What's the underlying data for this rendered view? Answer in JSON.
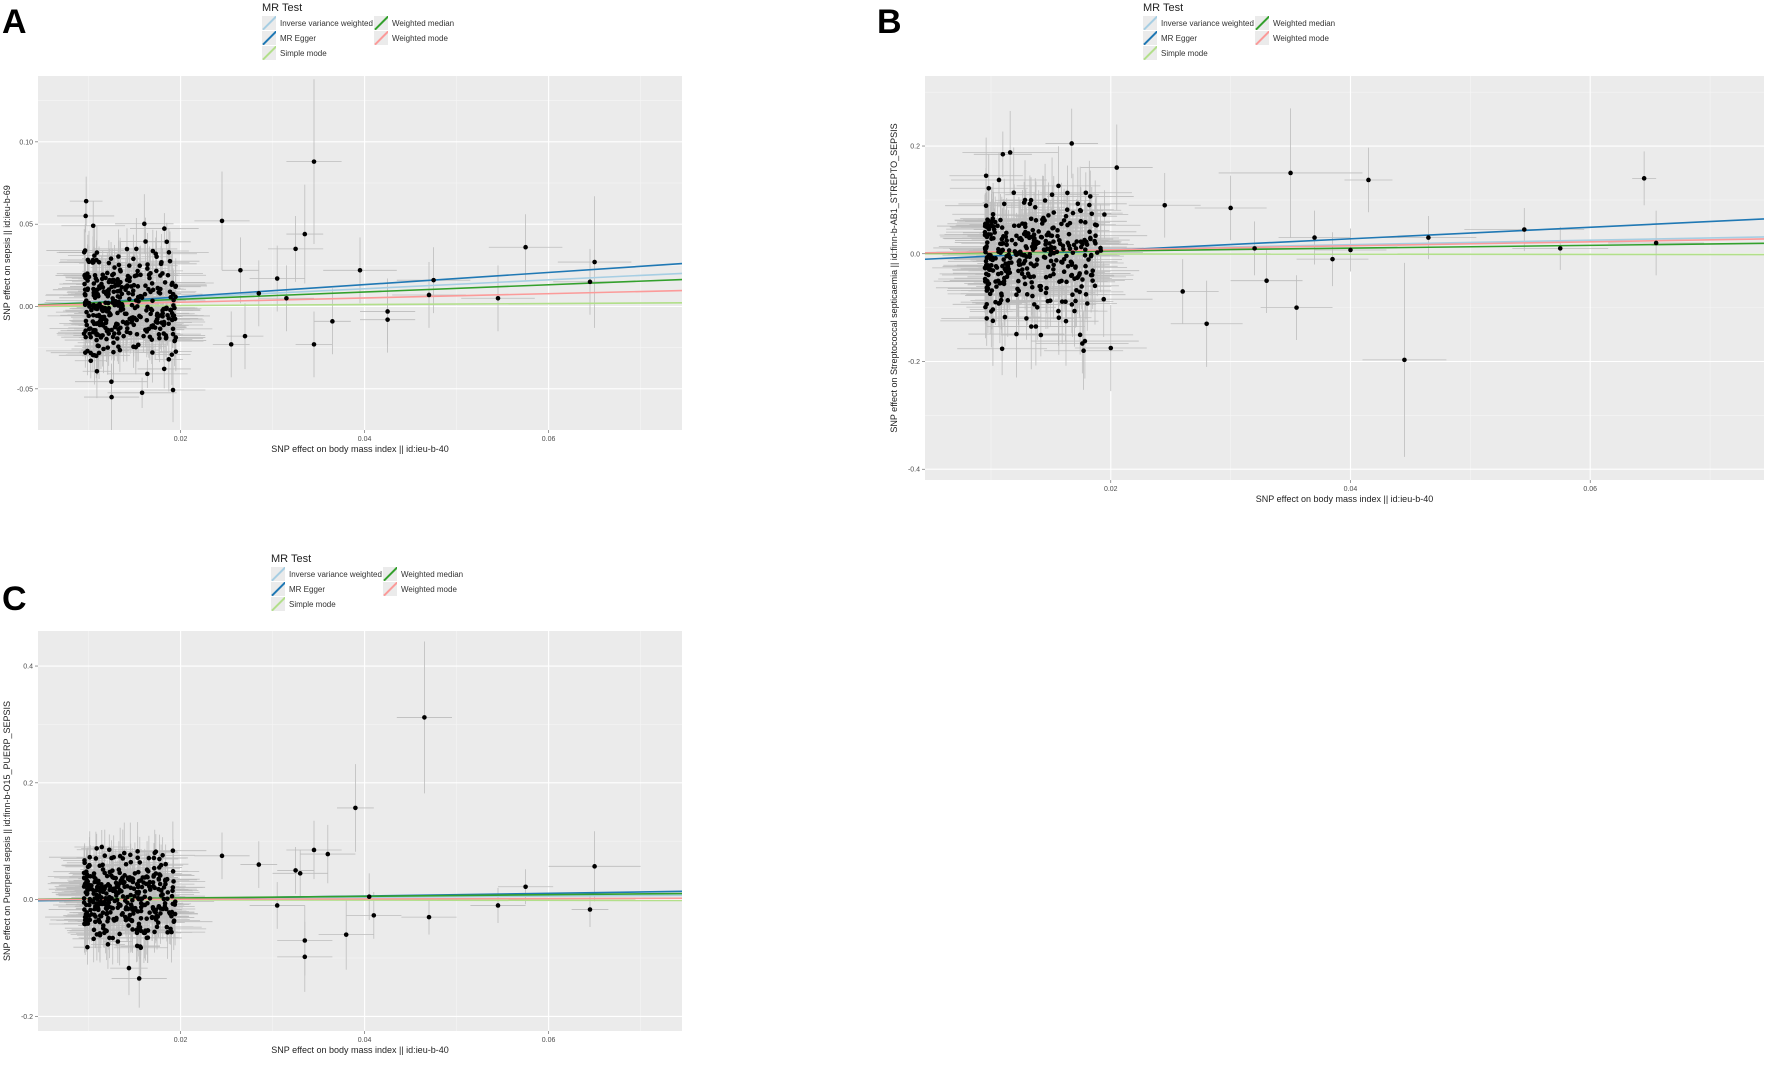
{
  "figure": {
    "legend_title": "MR Test",
    "methods": [
      {
        "name": "Inverse variance weighted",
        "color": "#a6cee3"
      },
      {
        "name": "MR Egger",
        "color": "#1f78b4"
      },
      {
        "name": "Simple mode",
        "color": "#b2df8a"
      },
      {
        "name": "Weighted median",
        "color": "#33a02c"
      },
      {
        "name": "Weighted mode",
        "color": "#fb9a99"
      }
    ]
  },
  "chart_data": [
    {
      "panel": "A",
      "type": "scatter",
      "xlabel": "SNP effect on body mass index || id:ieu-b-40",
      "ylabel": "SNP effect on sepsis || id:ieu-b-69",
      "xlim": [
        0.0045,
        0.0745
      ],
      "ylim": [
        -0.075,
        0.14
      ],
      "xticks": [
        0.02,
        0.04,
        0.06
      ],
      "xtick_labels": [
        "0.02",
        "0.04",
        "0.06"
      ],
      "yticks": [
        -0.05,
        0.0,
        0.05,
        0.1
      ],
      "ytick_labels": [
        "-0.05",
        "0.00",
        "0.05",
        "0.10"
      ],
      "cluster": {
        "seed": 11,
        "n": 380,
        "x_range": [
          0.0095,
          0.0195
        ],
        "y_sd": 0.018,
        "x_err": 0.003,
        "y_err": 0.014
      },
      "points": [
        {
          "x": 0.0345,
          "y": 0.088,
          "xe": 0.003,
          "ye": 0.05
        },
        {
          "x": 0.0335,
          "y": 0.044,
          "xe": 0.002,
          "ye": 0.03
        },
        {
          "x": 0.0325,
          "y": 0.035,
          "xe": 0.003,
          "ye": 0.02
        },
        {
          "x": 0.0395,
          "y": 0.022,
          "xe": 0.004,
          "ye": 0.02
        },
        {
          "x": 0.0265,
          "y": 0.022,
          "xe": 0.002,
          "ye": 0.02
        },
        {
          "x": 0.0245,
          "y": 0.052,
          "xe": 0.003,
          "ye": 0.03
        },
        {
          "x": 0.0305,
          "y": 0.017,
          "xe": 0.003,
          "ye": 0.02
        },
        {
          "x": 0.0285,
          "y": 0.008,
          "xe": 0.002,
          "ye": 0.02
        },
        {
          "x": 0.0315,
          "y": 0.005,
          "xe": 0.003,
          "ye": 0.02
        },
        {
          "x": 0.0345,
          "y": -0.023,
          "xe": 0.002,
          "ye": 0.02
        },
        {
          "x": 0.0365,
          "y": -0.009,
          "xe": 0.002,
          "ye": 0.02
        },
        {
          "x": 0.0425,
          "y": -0.003,
          "xe": 0.003,
          "ye": 0.02
        },
        {
          "x": 0.0425,
          "y": -0.008,
          "xe": 0.003,
          "ye": 0.02
        },
        {
          "x": 0.0475,
          "y": 0.016,
          "xe": 0.004,
          "ye": 0.02
        },
        {
          "x": 0.047,
          "y": 0.007,
          "xe": 0.004,
          "ye": 0.02
        },
        {
          "x": 0.0545,
          "y": 0.005,
          "xe": 0.004,
          "ye": 0.02
        },
        {
          "x": 0.0575,
          "y": 0.036,
          "xe": 0.004,
          "ye": 0.02
        },
        {
          "x": 0.0645,
          "y": 0.015,
          "xe": 0.004,
          "ye": 0.02
        },
        {
          "x": 0.065,
          "y": 0.027,
          "xe": 0.004,
          "ye": 0.04
        },
        {
          "x": 0.027,
          "y": -0.018,
          "xe": 0.002,
          "ye": 0.02
        },
        {
          "x": 0.0255,
          "y": -0.023,
          "xe": 0.002,
          "ye": 0.02
        },
        {
          "x": 0.0125,
          "y": -0.055,
          "xe": 0.003,
          "ye": 0.02
        }
      ],
      "lines": [
        {
          "method": "Inverse variance weighted",
          "intercept": 0,
          "slope": 0.27
        },
        {
          "method": "MR Egger",
          "intercept": -0.0015,
          "slope": 0.37
        },
        {
          "method": "Simple mode",
          "intercept": 0,
          "slope": 0.03
        },
        {
          "method": "Weighted median",
          "intercept": 0,
          "slope": 0.22
        },
        {
          "method": "Weighted mode",
          "intercept": 0,
          "slope": 0.13
        }
      ]
    },
    {
      "panel": "B",
      "type": "scatter",
      "xlabel": "SNP effect on body mass index || id:ieu-b-40",
      "ylabel": "SNP effect on Streptococcal septicaemia || id:finn-b-AB1_STREPTO_SEPSIS",
      "xlim": [
        0.0045,
        0.0745
      ],
      "ylim": [
        -0.42,
        0.33
      ],
      "xticks": [
        0.02,
        0.04,
        0.06
      ],
      "xtick_labels": [
        "0.02",
        "0.04",
        "0.06"
      ],
      "yticks": [
        -0.4,
        -0.2,
        0.0,
        0.2
      ],
      "ytick_labels": [
        "-0.4",
        "-0.2",
        "0.0",
        "0.2"
      ],
      "cluster": {
        "seed": 23,
        "n": 380,
        "x_range": [
          0.0095,
          0.0195
        ],
        "y_sd": 0.06,
        "x_err": 0.003,
        "y_err": 0.06
      },
      "points": [
        {
          "x": 0.035,
          "y": 0.15,
          "xe": 0.006,
          "ye": 0.12
        },
        {
          "x": 0.0415,
          "y": 0.137,
          "xe": 0.002,
          "ye": 0.06
        },
        {
          "x": 0.0205,
          "y": 0.16,
          "xe": 0.003,
          "ye": 0.08
        },
        {
          "x": 0.0445,
          "y": -0.197,
          "xe": 0.0035,
          "ye": 0.18
        },
        {
          "x": 0.02,
          "y": -0.175,
          "xe": 0.003,
          "ye": 0.08
        },
        {
          "x": 0.0645,
          "y": 0.14,
          "xe": 0.001,
          "ye": 0.05
        },
        {
          "x": 0.0545,
          "y": 0.045,
          "xe": 0.005,
          "ye": 0.04
        },
        {
          "x": 0.0575,
          "y": 0.01,
          "xe": 0.004,
          "ye": 0.04
        },
        {
          "x": 0.0655,
          "y": 0.02,
          "xe": 0.004,
          "ye": 0.06
        },
        {
          "x": 0.0465,
          "y": 0.03,
          "xe": 0.004,
          "ye": 0.04
        },
        {
          "x": 0.0355,
          "y": -0.1,
          "xe": 0.003,
          "ye": 0.06
        },
        {
          "x": 0.033,
          "y": -0.05,
          "xe": 0.003,
          "ye": 0.06
        },
        {
          "x": 0.028,
          "y": -0.13,
          "xe": 0.003,
          "ye": 0.08
        },
        {
          "x": 0.03,
          "y": 0.085,
          "xe": 0.003,
          "ye": 0.06
        },
        {
          "x": 0.0385,
          "y": -0.01,
          "xe": 0.003,
          "ye": 0.05
        },
        {
          "x": 0.037,
          "y": 0.03,
          "xe": 0.003,
          "ye": 0.05
        },
        {
          "x": 0.026,
          "y": -0.07,
          "xe": 0.003,
          "ye": 0.06
        },
        {
          "x": 0.0245,
          "y": 0.09,
          "xe": 0.003,
          "ye": 0.06
        },
        {
          "x": 0.032,
          "y": 0.01,
          "xe": 0.003,
          "ye": 0.05
        },
        {
          "x": 0.04,
          "y": 0.007,
          "xe": 0.003,
          "ye": 0.04
        }
      ],
      "lines": [
        {
          "method": "Inverse variance weighted",
          "intercept": 0,
          "slope": 0.42
        },
        {
          "method": "MR Egger",
          "intercept": -0.015,
          "slope": 1.07
        },
        {
          "method": "Simple mode",
          "intercept": 0,
          "slope": -0.02
        },
        {
          "method": "Weighted median",
          "intercept": 0,
          "slope": 0.26
        },
        {
          "method": "Weighted mode",
          "intercept": 0,
          "slope": 0.37
        }
      ]
    },
    {
      "panel": "C",
      "type": "scatter",
      "xlabel": "SNP effect on body mass index || id:ieu-b-40",
      "ylabel": "SNP effect on Puerperal sepsis || id:finn-b-O15_PUERP_SEPSIS",
      "xlim": [
        0.0045,
        0.0745
      ],
      "ylim": [
        -0.225,
        0.46
      ],
      "xticks": [
        0.02,
        0.04,
        0.06
      ],
      "xtick_labels": [
        "0.02",
        "0.04",
        "0.06"
      ],
      "yticks": [
        -0.2,
        0.0,
        0.2,
        0.4
      ],
      "ytick_labels": [
        "-0.2",
        "0.0",
        "0.2",
        "0.4"
      ],
      "cluster": {
        "seed": 37,
        "n": 380,
        "x_range": [
          0.0095,
          0.0195
        ],
        "y_sd": 0.04,
        "x_err": 0.003,
        "y_err": 0.04
      },
      "points": [
        {
          "x": 0.0465,
          "y": 0.312,
          "xe": 0.003,
          "ye": 0.13
        },
        {
          "x": 0.039,
          "y": 0.157,
          "xe": 0.002,
          "ye": 0.075
        },
        {
          "x": 0.0345,
          "y": 0.085,
          "xe": 0.003,
          "ye": 0.05
        },
        {
          "x": 0.036,
          "y": 0.078,
          "xe": 0.003,
          "ye": 0.05
        },
        {
          "x": 0.0285,
          "y": 0.06,
          "xe": 0.002,
          "ye": 0.04
        },
        {
          "x": 0.0325,
          "y": 0.05,
          "xe": 0.002,
          "ye": 0.04
        },
        {
          "x": 0.033,
          "y": 0.045,
          "xe": 0.003,
          "ye": 0.04
        },
        {
          "x": 0.0335,
          "y": -0.07,
          "xe": 0.003,
          "ye": 0.06
        },
        {
          "x": 0.0335,
          "y": -0.098,
          "xe": 0.003,
          "ye": 0.06
        },
        {
          "x": 0.038,
          "y": -0.06,
          "xe": 0.003,
          "ye": 0.06
        },
        {
          "x": 0.0405,
          "y": 0.005,
          "xe": 0.003,
          "ye": 0.04
        },
        {
          "x": 0.041,
          "y": -0.027,
          "xe": 0.003,
          "ye": 0.04
        },
        {
          "x": 0.047,
          "y": -0.03,
          "xe": 0.003,
          "ye": 0.03
        },
        {
          "x": 0.0545,
          "y": -0.01,
          "xe": 0.003,
          "ye": 0.03
        },
        {
          "x": 0.0575,
          "y": 0.022,
          "xe": 0.003,
          "ye": 0.03
        },
        {
          "x": 0.065,
          "y": 0.057,
          "xe": 0.005,
          "ye": 0.06
        },
        {
          "x": 0.0645,
          "y": -0.017,
          "xe": 0.002,
          "ye": 0.03
        },
        {
          "x": 0.0305,
          "y": -0.01,
          "xe": 0.003,
          "ye": 0.04
        },
        {
          "x": 0.0155,
          "y": -0.135,
          "xe": 0.003,
          "ye": 0.05
        },
        {
          "x": 0.0245,
          "y": 0.075,
          "xe": 0.003,
          "ye": 0.04
        }
      ],
      "lines": [
        {
          "method": "Inverse variance weighted",
          "intercept": 0,
          "slope": 0.1
        },
        {
          "method": "MR Egger",
          "intercept": -0.003,
          "slope": 0.23
        },
        {
          "method": "Simple mode",
          "intercept": 0,
          "slope": -0.02
        },
        {
          "method": "Weighted median",
          "intercept": 0,
          "slope": 0.14
        },
        {
          "method": "Weighted mode",
          "intercept": 0,
          "slope": 0.03
        }
      ]
    }
  ]
}
